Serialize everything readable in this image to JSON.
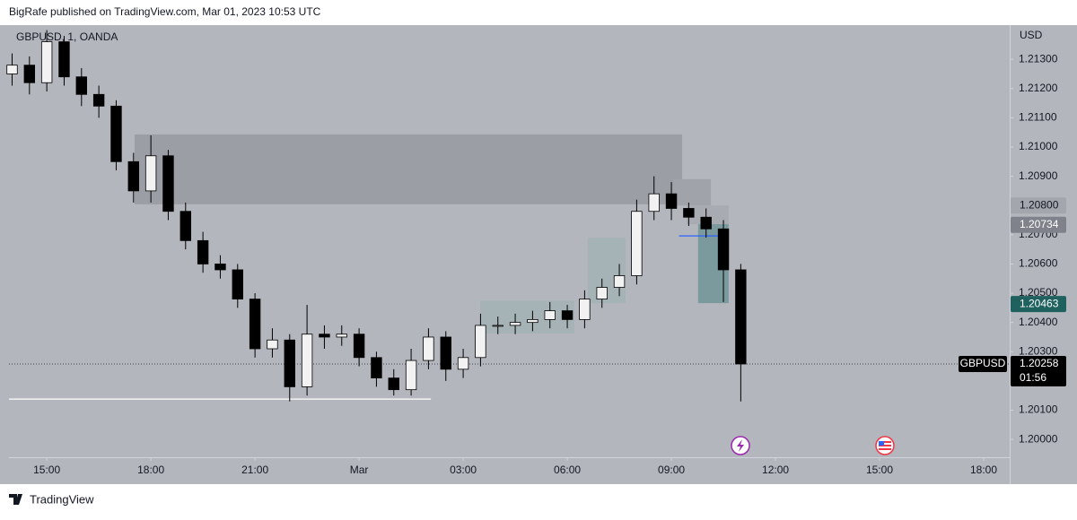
{
  "header": {
    "title": "BigRafe published on TradingView.com, Mar 01, 2023 10:53 UTC"
  },
  "footer": {
    "brand": "TradingView"
  },
  "chart_data": {
    "type": "candlestick",
    "title": "GBPUSD, 1, OANDA",
    "currency": "USD",
    "x": [
      -10,
      -9.5,
      -9,
      -8.5,
      -8,
      -7.5,
      -7,
      -6.5,
      -6,
      -5.5,
      -5,
      -4.5,
      -4,
      -3.5,
      -3,
      -2.5,
      -2,
      -1.5,
      -1,
      -0.5,
      0,
      0.5,
      1,
      1.5,
      2,
      2.5,
      3,
      3.5,
      4,
      4.5,
      5,
      5.5,
      6,
      6.5,
      7,
      7.5,
      8,
      8.5,
      9,
      9.5,
      10,
      10.5,
      11
    ],
    "open": [
      1.2125,
      1.2128,
      1.2122,
      1.2136,
      1.2124,
      1.2118,
      1.2114,
      1.2095,
      1.2085,
      1.2097,
      1.2078,
      1.2068,
      1.206,
      1.2058,
      1.2048,
      1.2031,
      1.2034,
      1.2018,
      1.2036,
      1.2035,
      1.2036,
      1.2028,
      1.2021,
      1.2017,
      1.2027,
      1.2035,
      1.2024,
      1.2028,
      1.2039,
      1.2039,
      1.204,
      1.2041,
      1.2044,
      1.2041,
      1.2048,
      1.2052,
      1.2056,
      1.2078,
      1.2084,
      1.2079,
      1.2076,
      1.2072,
      1.2058
    ],
    "high": [
      1.2132,
      1.2131,
      1.214,
      1.2138,
      1.2127,
      1.2121,
      1.2116,
      1.2098,
      1.2104,
      1.2099,
      1.2081,
      1.2071,
      1.2063,
      1.206,
      1.205,
      1.2038,
      1.2036,
      1.2046,
      1.2039,
      1.2039,
      1.2038,
      1.203,
      1.2024,
      1.2031,
      1.2038,
      1.2037,
      1.2031,
      1.2043,
      1.2042,
      1.2043,
      1.2044,
      1.2047,
      1.2046,
      1.2051,
      1.2055,
      1.206,
      1.2082,
      1.209,
      1.2088,
      1.2081,
      1.2079,
      1.2075,
      1.206
    ],
    "low": [
      1.2121,
      1.2118,
      1.2119,
      1.2121,
      1.2114,
      1.211,
      1.2092,
      1.2081,
      1.2081,
      1.2075,
      1.2065,
      1.2057,
      1.2055,
      1.2045,
      1.2028,
      1.2028,
      1.2013,
      1.2015,
      1.2031,
      1.2032,
      1.2025,
      1.2018,
      1.2015,
      1.2015,
      1.2024,
      1.202,
      1.2021,
      1.2025,
      1.2036,
      1.2036,
      1.2037,
      1.2038,
      1.2038,
      1.2038,
      1.2045,
      1.2049,
      1.2053,
      1.2075,
      1.2075,
      1.2073,
      1.2069,
      1.2047,
      1.2013
    ],
    "close": [
      1.2128,
      1.2122,
      1.2136,
      1.2124,
      1.2118,
      1.2114,
      1.2095,
      1.2085,
      1.2097,
      1.2078,
      1.2068,
      1.206,
      1.2058,
      1.2048,
      1.2031,
      1.2034,
      1.2018,
      1.2036,
      1.2035,
      1.2036,
      1.2028,
      1.2021,
      1.2017,
      1.2027,
      1.2035,
      1.2024,
      1.2028,
      1.2039,
      1.2039,
      1.204,
      1.2041,
      1.2044,
      1.2041,
      1.2048,
      1.2052,
      1.2056,
      1.2078,
      1.2084,
      1.2079,
      1.2076,
      1.2072,
      1.2058,
      1.20258
    ],
    "up_color": "#f2f2f2",
    "down_color": "#000000",
    "xlim": [
      -10.09,
      18.75
    ],
    "xticks": [
      {
        "value": -9,
        "label": "15:00"
      },
      {
        "value": -6,
        "label": "18:00"
      },
      {
        "value": -3,
        "label": "21:00"
      },
      {
        "value": 0,
        "label": "Mar"
      },
      {
        "value": 3,
        "label": "03:00"
      },
      {
        "value": 6,
        "label": "06:00"
      },
      {
        "value": 9,
        "label": "09:00"
      },
      {
        "value": 12,
        "label": "12:00"
      },
      {
        "value": 15,
        "label": "15:00"
      },
      {
        "value": 18,
        "label": "18:00"
      }
    ],
    "ylim": [
      1.19939,
      1.21417
    ],
    "yticks": [
      {
        "value": 1.2,
        "label": "1.20000"
      },
      {
        "value": 1.201,
        "label": "1.20100"
      },
      {
        "value": 1.202,
        "label": "1.20200"
      },
      {
        "value": 1.203,
        "label": "1.20300"
      },
      {
        "value": 1.204,
        "label": "1.20400"
      },
      {
        "value": 1.205,
        "label": "1.20500"
      },
      {
        "value": 1.206,
        "label": "1.20600"
      },
      {
        "value": 1.207,
        "label": "1.20700"
      },
      {
        "value": 1.208,
        "label": "1.20800"
      },
      {
        "value": 1.209,
        "label": "1.20900"
      },
      {
        "value": 1.21,
        "label": "1.21000"
      },
      {
        "value": 1.211,
        "label": "1.21100"
      },
      {
        "value": 1.212,
        "label": "1.21200"
      },
      {
        "value": 1.213,
        "label": "1.21300"
      }
    ],
    "zones": [
      {
        "x": [
          -6.47,
          9.31
        ],
        "y": [
          1.20804,
          1.21043
        ],
        "color": "#9c9ea5"
      },
      {
        "x": [
          9.05,
          10.14
        ],
        "y": [
          1.208,
          1.2089
        ],
        "color": "#a1a3aa"
      },
      {
        "x": [
          9.44,
          10.65
        ],
        "y": [
          1.20736,
          1.208
        ],
        "color": "#a9abb2"
      },
      {
        "x": [
          3.49,
          6.2
        ],
        "y": [
          1.20362,
          1.20475
        ],
        "color": "#a6b3b6"
      },
      {
        "x": [
          6.59,
          7.68
        ],
        "y": [
          1.20466,
          1.2069
        ],
        "color": "#a6b3b6"
      },
      {
        "x": [
          9.77,
          10.65
        ],
        "y": [
          1.20466,
          1.20736
        ],
        "color": "#7a9a9d"
      }
    ],
    "levels": [
      {
        "x": [
          -10.09,
          2.07
        ],
        "y": 1.20138,
        "color": "#ffffff"
      },
      {
        "x": [
          9.22,
          10.59
        ],
        "y": 1.20696,
        "color": "#2962ff"
      }
    ],
    "price_labels": [
      {
        "value": 1.208,
        "label": "1.20800",
        "color": "#a3a6ad",
        "text_color": "#131722"
      },
      {
        "value": 1.20734,
        "label": "1.20734",
        "color": "#7f828b",
        "text_color": "#ffffff"
      },
      {
        "value": 1.20463,
        "label": "1.20463",
        "color": "#1e615f",
        "text_color": "#ffffff"
      }
    ],
    "last": {
      "name": "GBPUSD",
      "value": 1.20258,
      "label": "1.20258",
      "countdown": "01:56"
    }
  }
}
